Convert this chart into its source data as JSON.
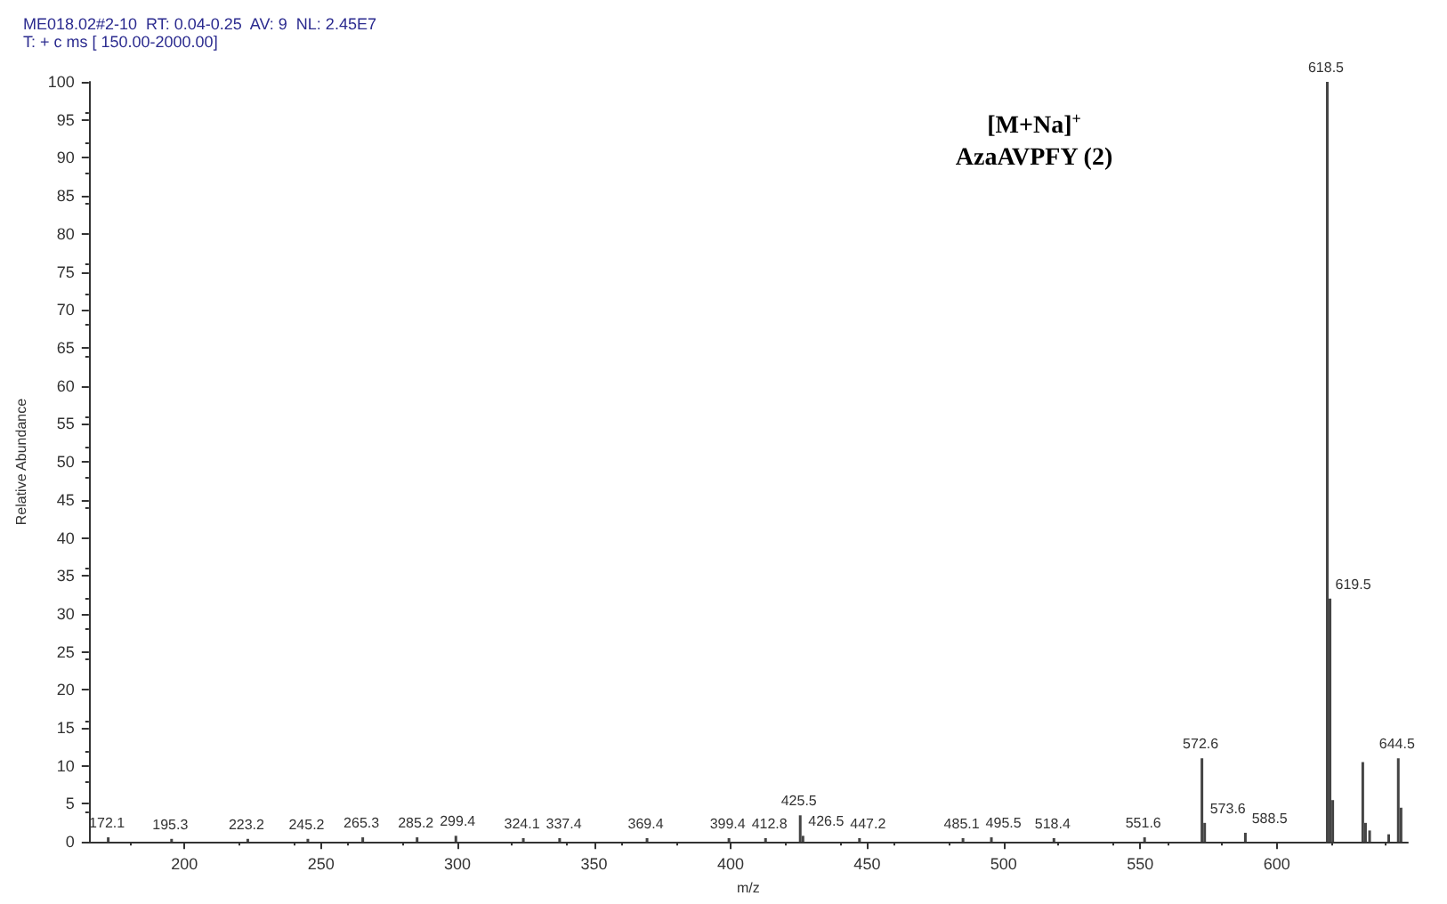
{
  "chart_data": {
    "type": "bar",
    "title": "ME018.02#2-10  RT: 0.04-0.25  AV: 9  NL: 2.45E7",
    "subtitle": "T: + c ms [ 150.00-2000.00]",
    "xlabel": "m/z",
    "ylabel": "Relative Abundance",
    "annotations": [
      "[M+Na]$^{+}$\nAzaAVPFY (2)",
      {
        "text": "172.1",
        "x": 172.1,
        "y": 0.6
      },
      {
        "text": "195.3",
        "x": 195.3,
        "y": 0.4
      },
      {
        "text": "223.2",
        "x": 223.2,
        "y": 0.4
      },
      {
        "text": "245.2",
        "x": 245.2,
        "y": 0.4
      },
      {
        "text": "265.3",
        "x": 265.3,
        "y": 0.6
      },
      {
        "text": "285.2",
        "x": 285.2,
        "y": 0.6
      },
      {
        "text": "299.4",
        "x": 299.4,
        "y": 0.8
      },
      {
        "text": "324.1",
        "x": 324.1,
        "y": 0.5
      },
      {
        "text": "337.4",
        "x": 337.4,
        "y": 0.5
      },
      {
        "text": "369.4",
        "x": 369.4,
        "y": 0.5
      },
      {
        "text": "399.4",
        "x": 399.4,
        "y": 0.5
      },
      {
        "text": "412.8",
        "x": 412.8,
        "y": 0.5
      },
      {
        "text": "425.5",
        "x": 425.5,
        "y": 3.5
      },
      {
        "text": "426.5",
        "x": 426.5,
        "y": 0.8
      },
      {
        "text": "447.2",
        "x": 447.2,
        "y": 0.5
      },
      {
        "text": "485.1",
        "x": 485.1,
        "y": 0.5
      },
      {
        "text": "495.5",
        "x": 495.5,
        "y": 0.6
      },
      {
        "text": "518.4",
        "x": 518.4,
        "y": 0.5
      },
      {
        "text": "551.6",
        "x": 551.6,
        "y": 0.6
      },
      {
        "text": "572.6",
        "x": 572.6,
        "y": 11
      },
      {
        "text": "573.6",
        "x": 573.6,
        "y": 2.5
      },
      {
        "text": "588.5",
        "x": 588.5,
        "y": 1.2
      },
      {
        "text": "618.5",
        "x": 618.5,
        "y": 100
      },
      {
        "text": "619.5",
        "x": 619.5,
        "y": 32
      },
      {
        "text": "644.5",
        "x": 644.5,
        "y": 11
      }
    ],
    "x": [
      172.1,
      195.3,
      223.2,
      245.2,
      265.3,
      285.2,
      299.4,
      324.1,
      337.4,
      369.4,
      399.4,
      412.8,
      425.5,
      426.5,
      447.2,
      485.1,
      495.5,
      518.4,
      551.6,
      572.6,
      573.6,
      588.5,
      618.5,
      619.5,
      620.5,
      631.5,
      632.5,
      634,
      641,
      644.5,
      645.5
    ],
    "values": [
      0.6,
      0.4,
      0.4,
      0.4,
      0.6,
      0.6,
      0.8,
      0.5,
      0.5,
      0.5,
      0.5,
      0.5,
      3.5,
      0.8,
      0.5,
      0.5,
      0.6,
      0.5,
      0.6,
      11,
      2.5,
      1.2,
      100,
      32,
      5.5,
      10.5,
      2.5,
      1.5,
      1,
      11,
      4.5
    ],
    "color": "#444444",
    "xlim": [
      165,
      648
    ],
    "ylim": [
      0,
      100
    ],
    "xticks": [
      200,
      250,
      300,
      350,
      400,
      450,
      500,
      550,
      600
    ],
    "yticks": [
      0,
      5,
      10,
      15,
      20,
      25,
      30,
      35,
      40,
      45,
      50,
      55,
      60,
      65,
      70,
      75,
      80,
      85,
      90,
      95,
      100
    ],
    "grid": false
  }
}
